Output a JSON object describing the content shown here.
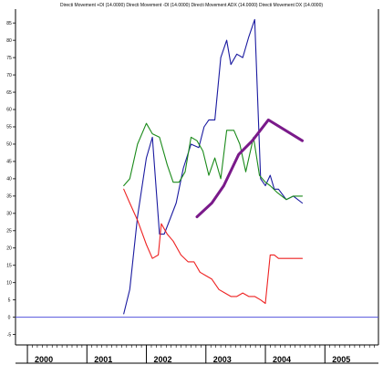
{
  "chart_data": {
    "type": "line",
    "title": "Directi Movement +DI (14.0000) Directi Movement -DI (14.0000) Directi Movement ADX (14.0000) Directi Movement DX (14.0000)",
    "xlabel": "",
    "ylabel": "",
    "ylim": [
      -8,
      89
    ],
    "xlim": [
      1999.8,
      2005.9
    ],
    "y_ticks": [
      -5,
      0,
      5,
      10,
      15,
      20,
      25,
      30,
      35,
      40,
      45,
      50,
      55,
      60,
      65,
      70,
      75,
      80,
      85
    ],
    "x_ticks": [
      2000,
      2001,
      2002,
      2003,
      2004,
      2005
    ],
    "grid": false,
    "baseline": 0,
    "series": [
      {
        "color": "#1a1aa0",
        "x": [
          2001.62,
          2001.72,
          2001.85,
          2002.0,
          2002.1,
          2002.22,
          2002.3,
          2002.5,
          2002.62,
          2002.75,
          2002.88,
          2002.97,
          2003.05,
          2003.15,
          2003.25,
          2003.35,
          2003.42,
          2003.52,
          2003.62,
          2003.72,
          2003.82,
          2003.92,
          2004.0,
          2004.08,
          2004.15,
          2004.22,
          2004.35,
          2004.47,
          2004.62
        ],
        "values": [
          1,
          8,
          29,
          46,
          52,
          24,
          24,
          33,
          43,
          50,
          49,
          55,
          57,
          57,
          75,
          80,
          73,
          76,
          75,
          81,
          86,
          40,
          38,
          41,
          37,
          37,
          34,
          35,
          33
        ]
      },
      {
        "color": "#1a8a1a",
        "x": [
          2001.62,
          2001.72,
          2001.85,
          2002.0,
          2002.1,
          2002.22,
          2002.35,
          2002.45,
          2002.55,
          2002.65,
          2002.75,
          2002.85,
          2002.95,
          2003.05,
          2003.15,
          2003.25,
          2003.35,
          2003.47,
          2003.57,
          2003.67,
          2003.8,
          2003.9,
          2004.0,
          2004.08,
          2004.2,
          2004.35,
          2004.47,
          2004.62
        ],
        "values": [
          38,
          40,
          50,
          56,
          53,
          52,
          44,
          39,
          39,
          42,
          52,
          51,
          48,
          41,
          46,
          40,
          54,
          54,
          50,
          42,
          52,
          41,
          39,
          38,
          36,
          34,
          35,
          35
        ]
      },
      {
        "color": "#ee2222",
        "x": [
          2001.62,
          2001.72,
          2001.85,
          2002.0,
          2002.1,
          2002.2,
          2002.25,
          2002.35,
          2002.45,
          2002.58,
          2002.7,
          2002.8,
          2002.9,
          2003.0,
          2003.1,
          2003.22,
          2003.32,
          2003.42,
          2003.52,
          2003.62,
          2003.72,
          2003.82,
          2003.92,
          2004.0,
          2004.08,
          2004.15,
          2004.22,
          2004.35,
          2004.47,
          2004.62
        ],
        "values": [
          37,
          33,
          28,
          21,
          17,
          18,
          27,
          24,
          22,
          18,
          16,
          16,
          13,
          12,
          11,
          8,
          7,
          6,
          6,
          7,
          6,
          6,
          5,
          4,
          18,
          18,
          17,
          17,
          17,
          17
        ]
      },
      {
        "color": "#7a1a8a",
        "x": [
          2002.85,
          2003.1,
          2003.3,
          2003.55,
          2003.78,
          2004.05,
          2004.62
        ],
        "values": [
          29,
          33,
          38,
          47,
          51,
          57,
          51
        ]
      }
    ]
  }
}
